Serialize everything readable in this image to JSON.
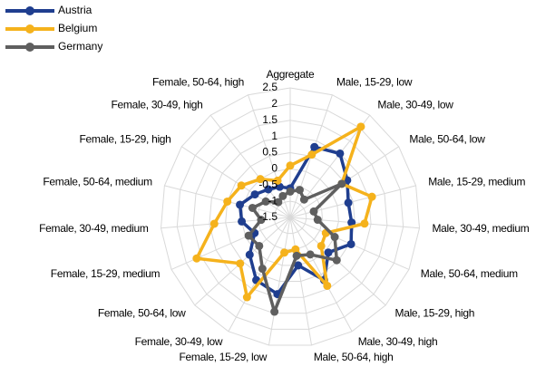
{
  "chart_data": {
    "type": "radar",
    "categories": [
      "Aggregate",
      "Male, 15-29, low",
      "Male, 30-49, low",
      "Male, 50-64, low",
      "Male, 15-29, medium",
      "Male, 30-49, medium",
      "Male, 50-64, medium",
      "Male, 15-29, high",
      "Male, 30-49, high",
      "Male, 50-64, high",
      "Female, 15-29, low",
      "Female, 30-49, low",
      "Female, 50-64, low",
      "Female, 15-29, medium",
      "Female, 30-49, medium",
      "Female, 50-64, medium",
      "Female, 15-29, high",
      "Female, 30-49, high",
      "Female, 50-64, high"
    ],
    "series": [
      {
        "name": "Austria",
        "color": "#1f3e8f",
        "values": [
          -0.6,
          0.8,
          1.0,
          0.6,
          0.35,
          0.4,
          0.55,
          0.1,
          0.7,
          0.0,
          0.9,
          0.7,
          0.2,
          -0.3,
          0.0,
          0.1,
          -0.2,
          -0.4,
          -0.5
        ]
      },
      {
        "name": "Belgium",
        "color": "#f5b21c",
        "values": [
          0.1,
          0.55,
          2.05,
          0.4,
          1.1,
          0.8,
          -0.3,
          -0.2,
          0.9,
          -0.5,
          -0.4,
          1.3,
          0.6,
          1.65,
          0.85,
          0.5,
          0.3,
          0.0,
          -0.3
        ]
      },
      {
        "name": "Germany",
        "color": "#5f5f5f",
        "values": [
          -0.7,
          -0.6,
          -0.8,
          0.4,
          -0.75,
          -0.65,
          0.0,
          0.45,
          -0.2,
          -0.3,
          1.45,
          0.3,
          -0.2,
          -0.1,
          -0.6,
          -0.3,
          -0.6,
          -0.9,
          -0.8
        ]
      }
    ],
    "rlim": [
      -1.5,
      2.5
    ],
    "rticks": [
      -1.5,
      -1,
      -0.5,
      0,
      0.5,
      1,
      1.5,
      2,
      2.5
    ],
    "grid": true,
    "legend": "top-left"
  }
}
